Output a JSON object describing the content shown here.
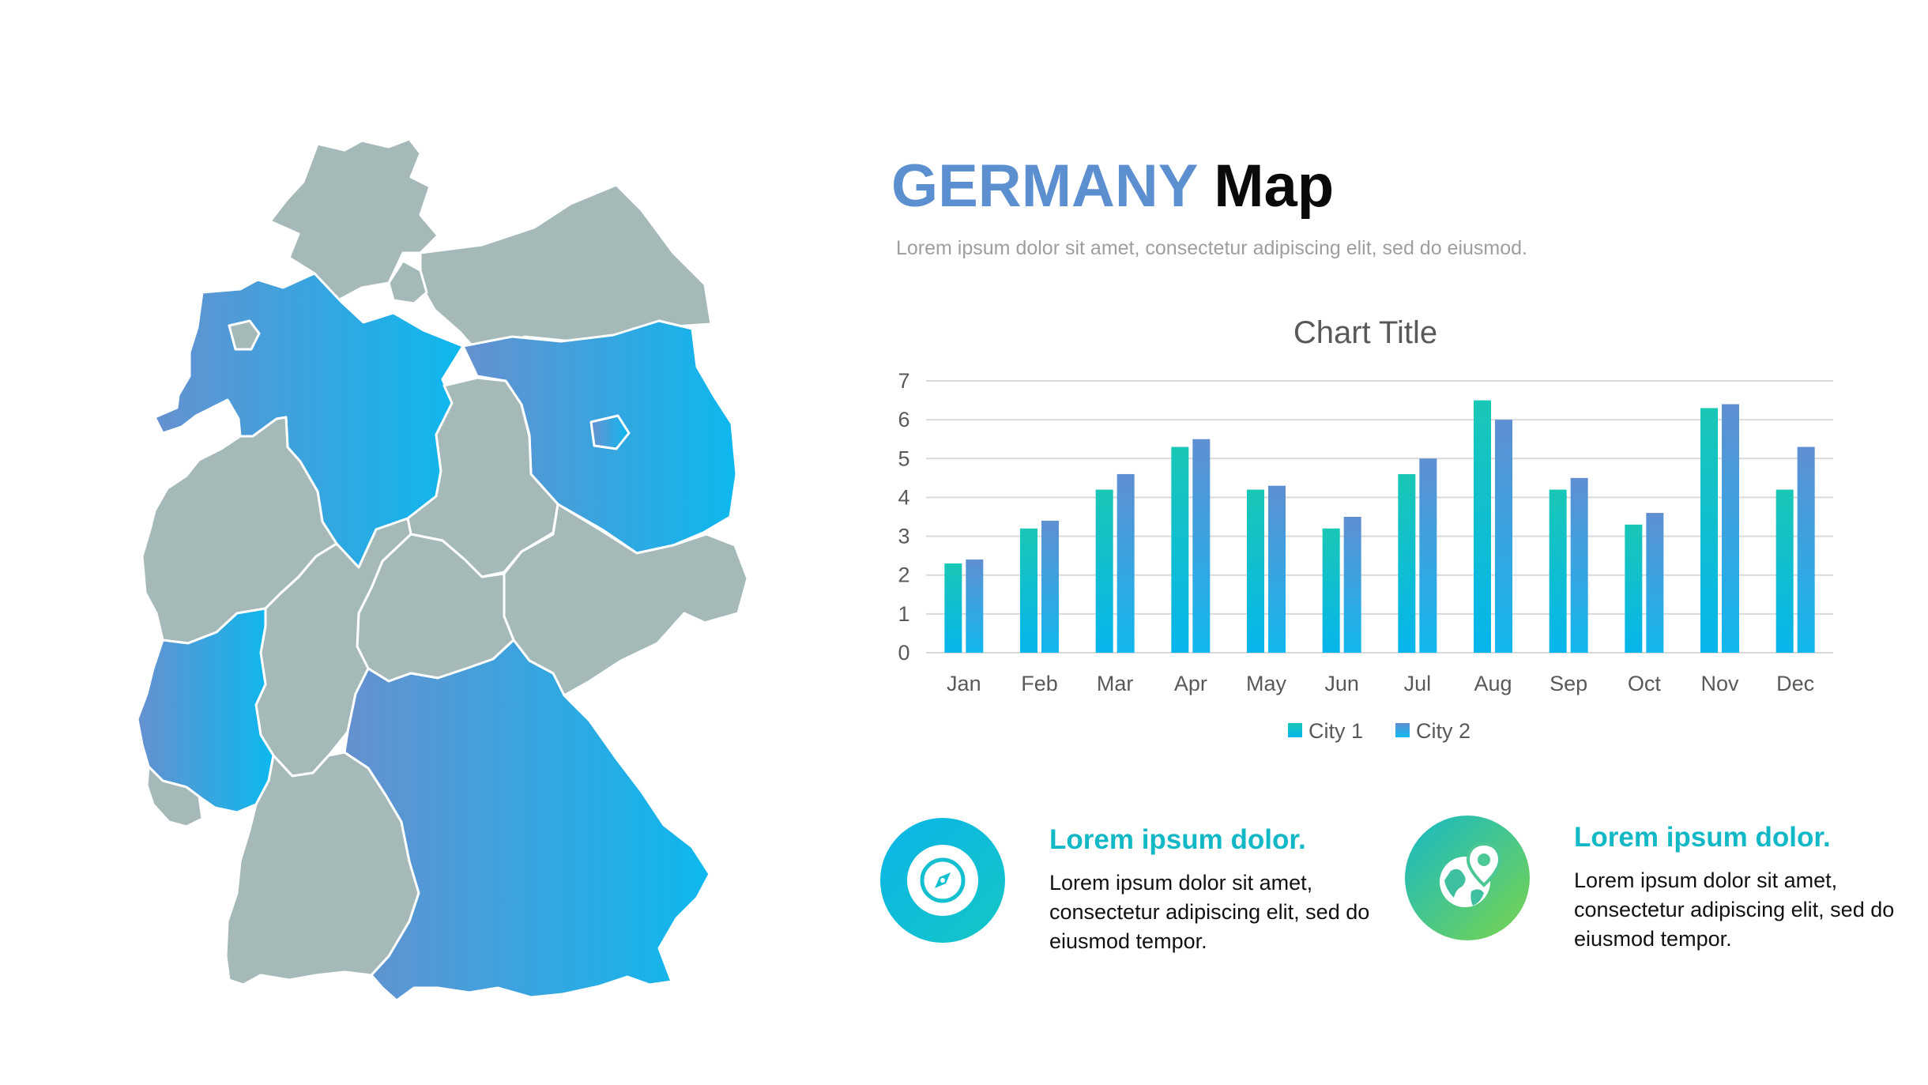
{
  "slide": {
    "title_part1": "GERMANY",
    "title_part2": " Map",
    "subtitle": "Lorem ipsum dolor sit amet, consectetur adipiscing elit, sed do eiusmod."
  },
  "colors": {
    "title_accent": "#5b8fd0",
    "map_grey": "#a6b9b9",
    "city1_top": "#19c7b6",
    "city1_bottom": "#06b5ec",
    "city2_top": "#5f8fd2",
    "city2_bottom": "#12b8ee",
    "feature_title": "#12b8c6"
  },
  "chart_data": {
    "type": "bar",
    "title": "Chart Title",
    "categories": [
      "Jan",
      "Feb",
      "Mar",
      "Apr",
      "May",
      "Jun",
      "Jul",
      "Aug",
      "Sep",
      "Oct",
      "Nov",
      "Dec"
    ],
    "series": [
      {
        "name": "City 1",
        "values": [
          2.3,
          3.2,
          4.2,
          5.3,
          4.2,
          3.2,
          4.6,
          6.5,
          4.2,
          3.3,
          6.3,
          4.2
        ]
      },
      {
        "name": "City 2",
        "values": [
          2.4,
          3.4,
          4.6,
          5.5,
          4.3,
          3.5,
          5.0,
          6.0,
          4.5,
          3.6,
          6.4,
          5.3
        ]
      }
    ],
    "ylim": [
      0,
      7
    ],
    "yticks": [
      0,
      1,
      2,
      3,
      4,
      5,
      6,
      7
    ],
    "grid": true,
    "legend": "bottom-center"
  },
  "features": [
    {
      "title": "Lorem ipsum dolor.",
      "text": "Lorem ipsum dolor sit amet, consectetur adipiscing elit, sed do eiusmod tempor.",
      "icon": "compass-icon"
    },
    {
      "title": "Lorem ipsum dolor.",
      "text": "Lorem ipsum dolor sit amet, consectetur adipiscing elit, sed do eiusmod tempor.",
      "icon": "globe-location-icon"
    }
  ]
}
